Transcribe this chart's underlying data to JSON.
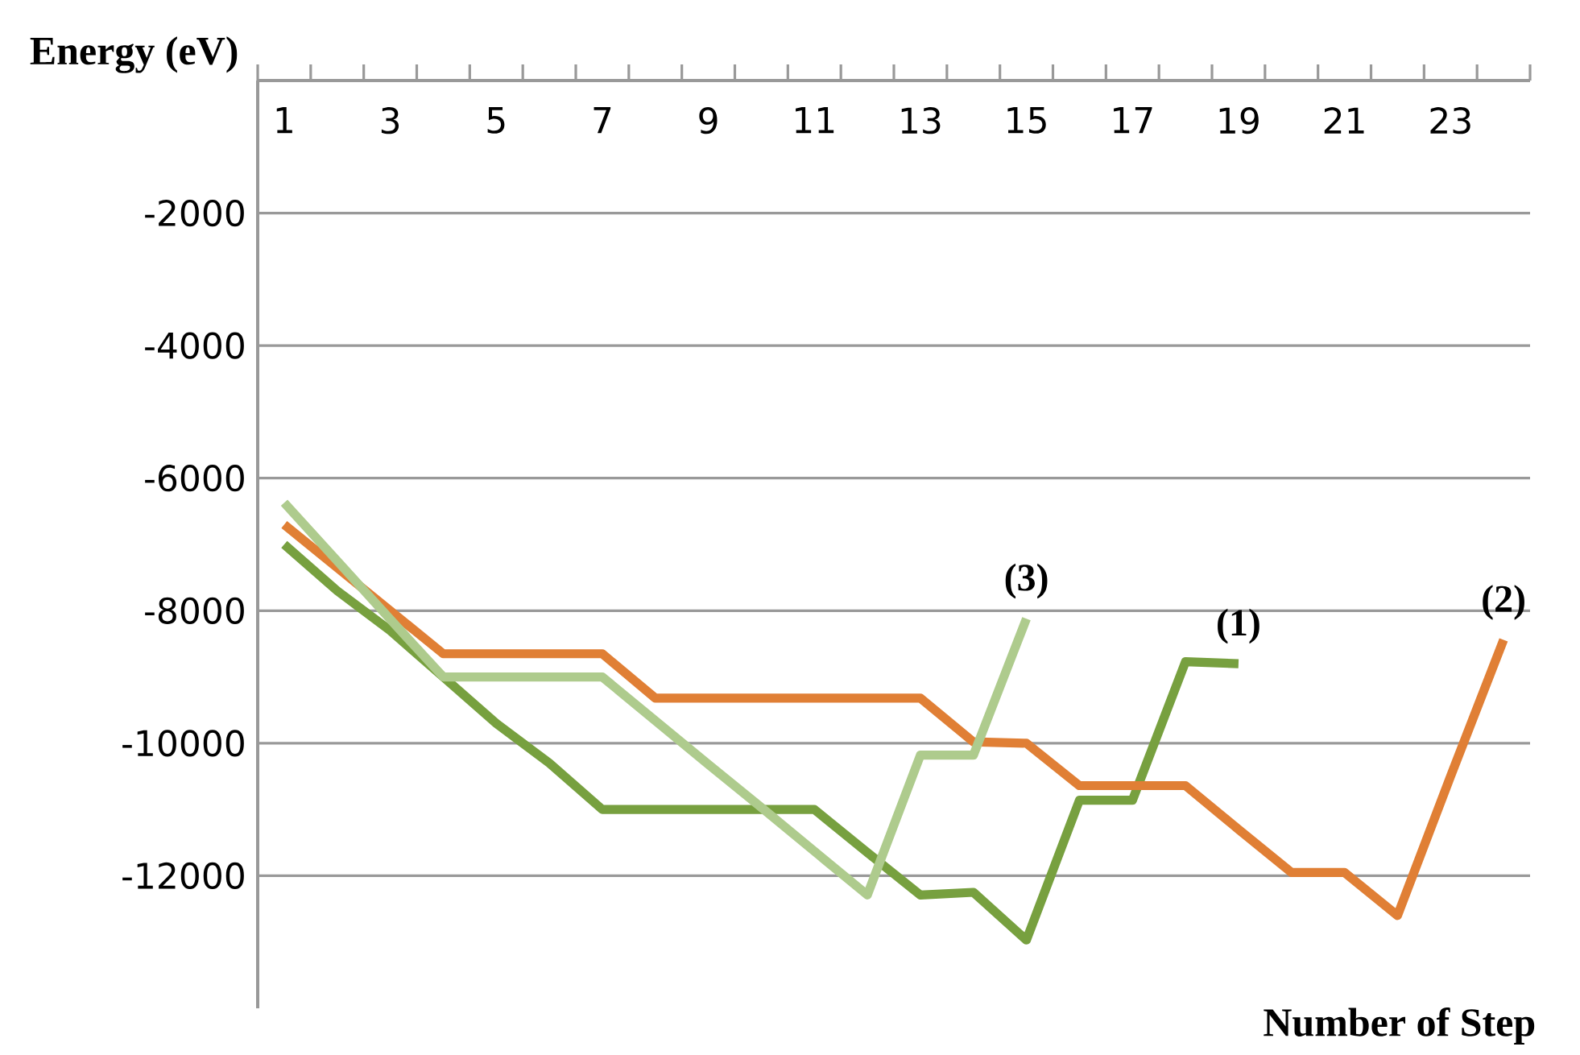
{
  "chart_data": {
    "type": "line",
    "xlabel": "Number of Step",
    "ylabel": "Energy (eV)",
    "categories": [
      "1",
      null,
      "3",
      null,
      "5",
      null,
      "7",
      null,
      "9",
      null,
      "11",
      null,
      "13",
      null,
      "15",
      null,
      "17",
      null,
      "19",
      null,
      "21",
      null,
      "23",
      null
    ],
    "ylim": [
      -14000,
      0
    ],
    "yticks": [
      -2000,
      -4000,
      -6000,
      -8000,
      -10000,
      -12000
    ],
    "grid": "y",
    "marker": "none",
    "line_style": "solid",
    "series": [
      {
        "name": "(1)",
        "color": "#77a03f",
        "values": [
          -7000,
          -7700,
          -8300,
          -9000,
          -9700,
          -10300,
          -11000,
          -11000,
          -11000,
          -11000,
          -11000,
          -11650,
          -12290,
          -12250,
          -12970,
          -10860,
          -10860,
          -8770,
          -8800,
          null,
          null,
          null,
          null,
          null
        ]
      },
      {
        "name": "(2)",
        "color": "#e07f35",
        "values": [
          -6700,
          -7350,
          -8000,
          -8650,
          -8650,
          -8650,
          -8650,
          -9320,
          -9320,
          -9320,
          -9320,
          -9320,
          -9320,
          -9980,
          -10000,
          -10640,
          -10640,
          -10640,
          -11300,
          -11950,
          -11950,
          -12600,
          -10500,
          -8440
        ]
      },
      {
        "name": "(3)",
        "color": "#aecb8d",
        "values": [
          -6370,
          -7250,
          -8130,
          -9000,
          -9000,
          -9000,
          -9000,
          -9660,
          -10320,
          -10970,
          -11630,
          -12290,
          -10180,
          -10180,
          -8120,
          null,
          null,
          null,
          null,
          null,
          null,
          null,
          null,
          null
        ]
      }
    ]
  }
}
